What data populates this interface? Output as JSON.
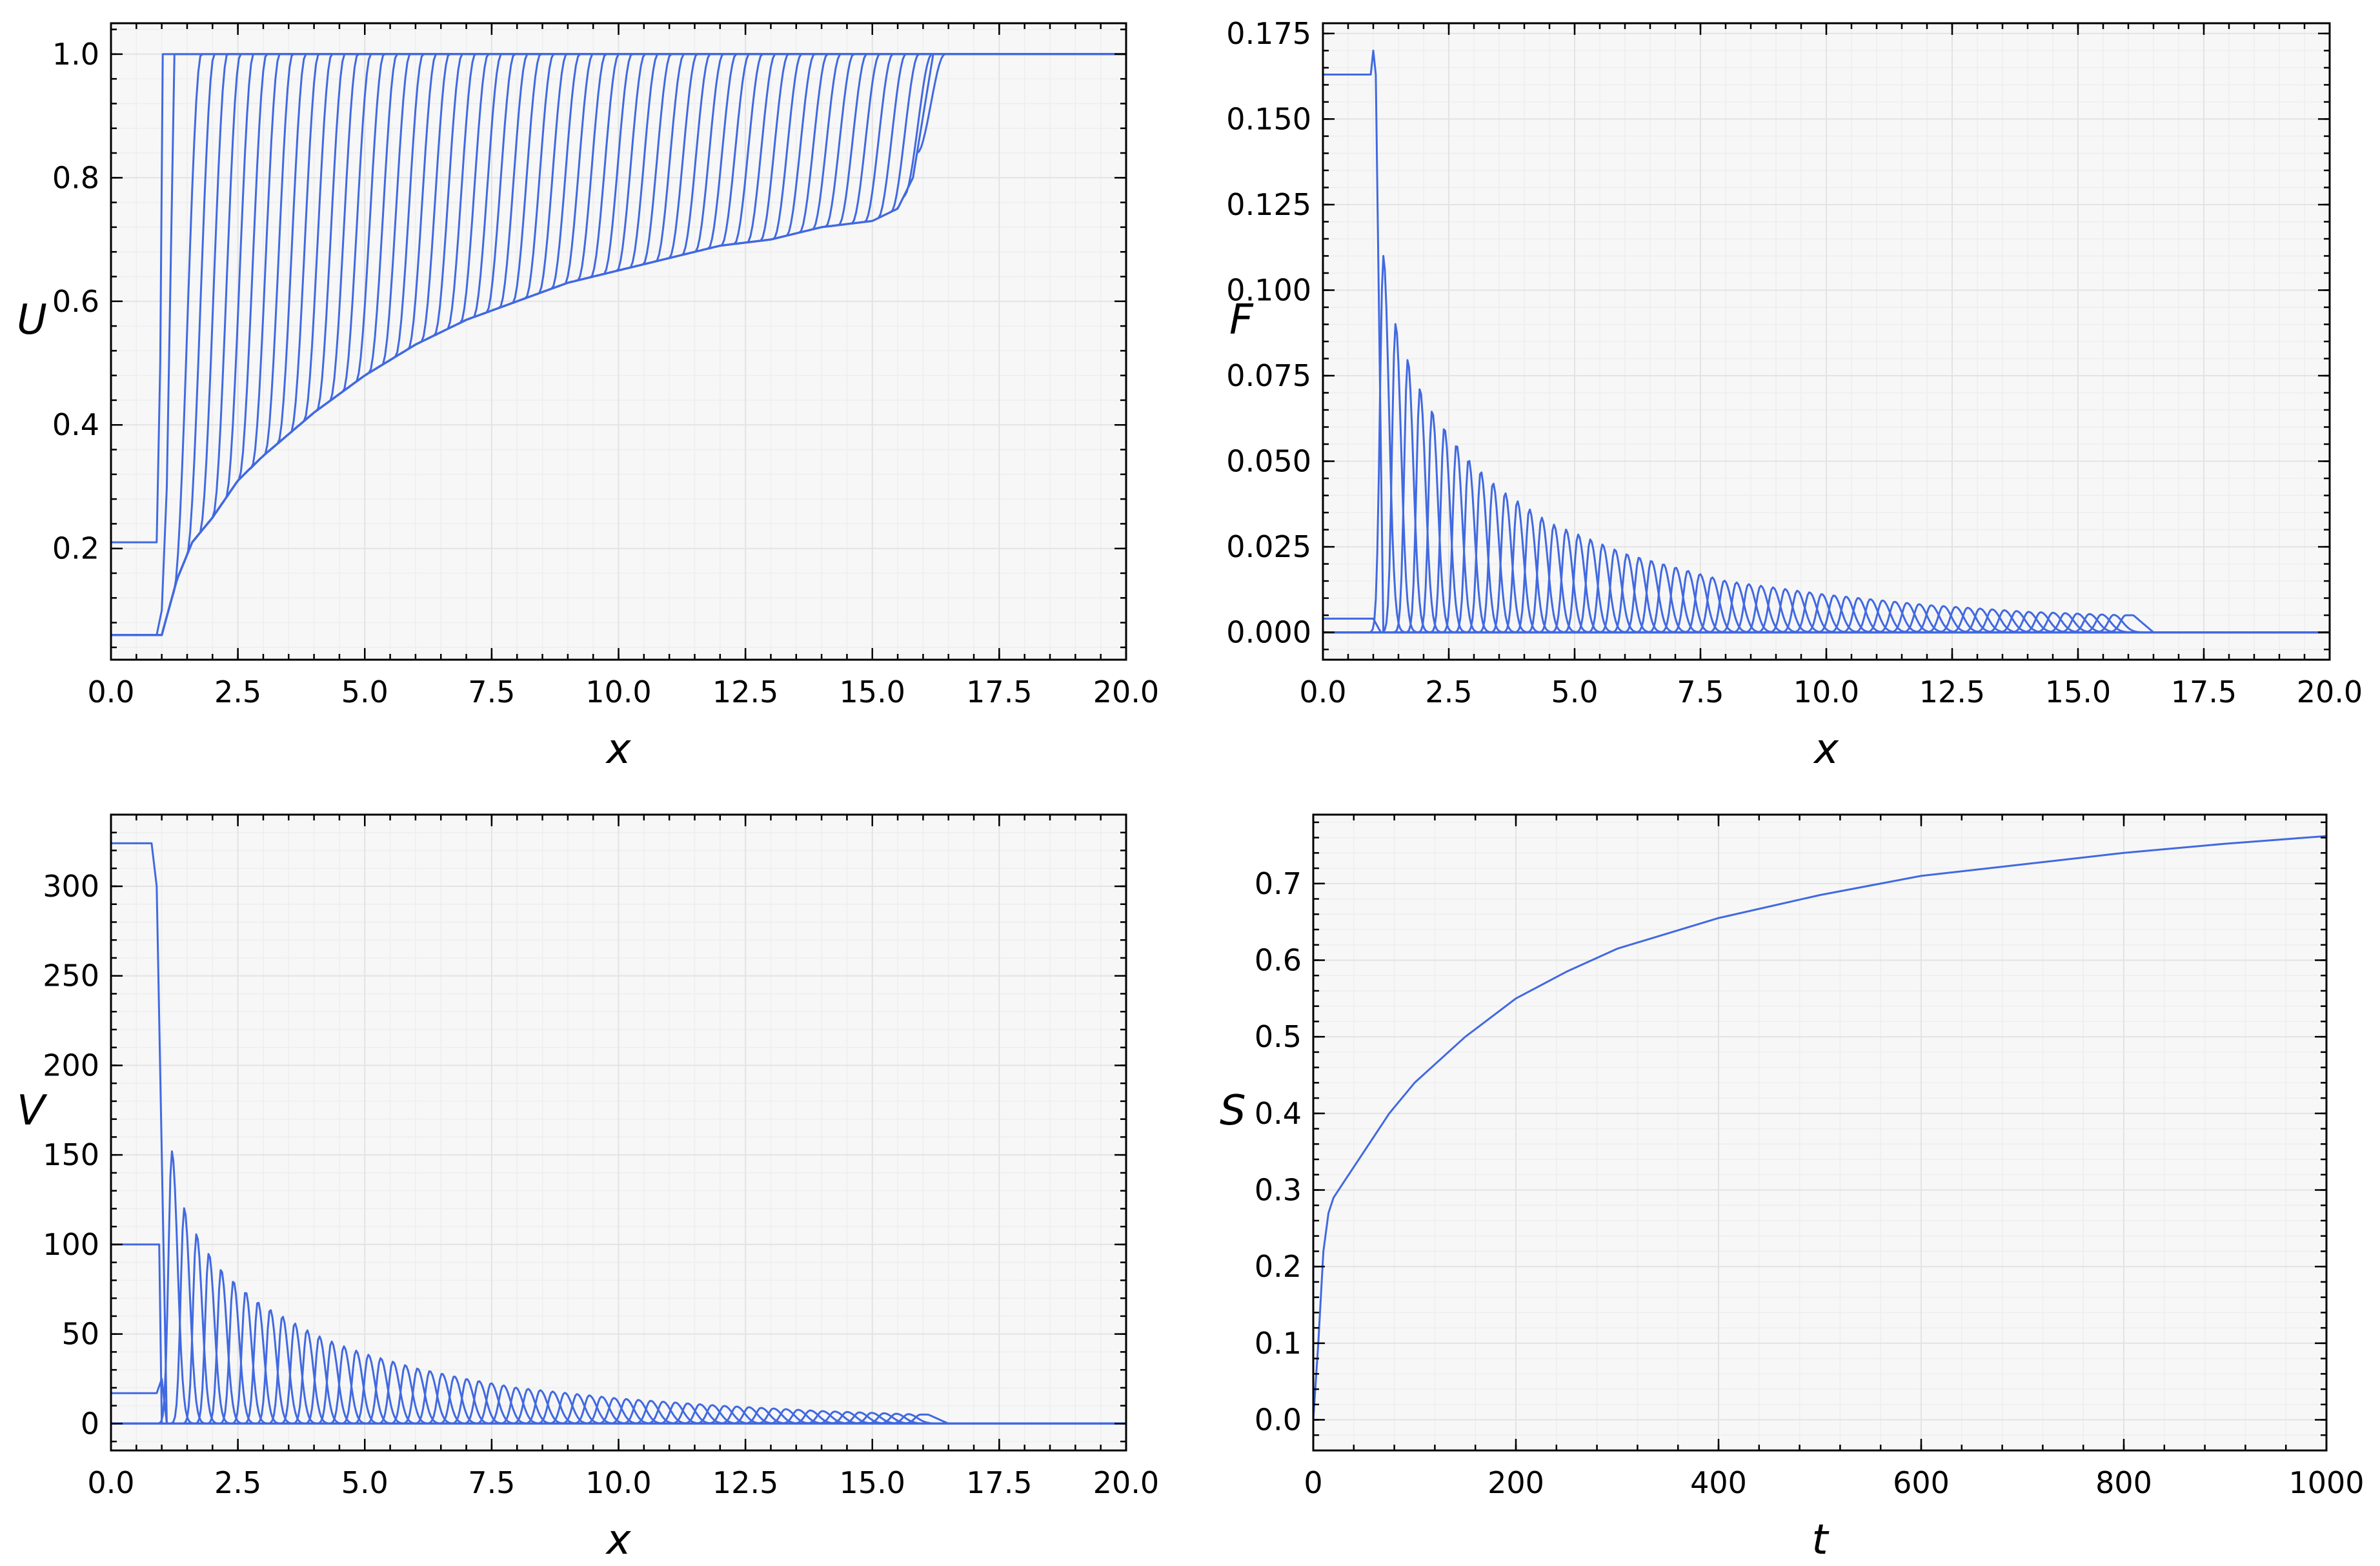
{
  "colors": {
    "line": "#4169e1",
    "plot_bg": "#f7f7f7",
    "grid_major": "#e3e3e3",
    "grid_minor": "#eeeeee",
    "frame": "#000000"
  },
  "chart_data": [
    {
      "id": "U",
      "type": "line",
      "subplot": "top-left",
      "xlabel": "x",
      "ylabel": "U",
      "xlim": [
        0,
        20
      ],
      "ylim": [
        0.02,
        1.05
      ],
      "xticks": [
        0,
        2.5,
        5,
        7.5,
        10,
        12.5,
        15,
        17.5,
        20
      ],
      "xtick_labels": [
        "0.0",
        "2.5",
        "5.0",
        "7.5",
        "10.0",
        "12.5",
        "15.0",
        "17.5",
        "20.0"
      ],
      "yticks": [
        0.2,
        0.4,
        0.6,
        0.8,
        1.0
      ],
      "ytick_labels": [
        "0.2",
        "0.4",
        "0.6",
        "0.8",
        "1.0"
      ],
      "grid": true,
      "description_of_series": "family of profiles: front position moves from x≈1.0 to x≈16.2; behind front U rises from 0.06 at x≈1 to 0.73 at x≈15",
      "series": [
        {
          "x": [
            0,
            0.9,
            0.97,
            1.02,
            20
          ],
          "y": [
            0.21,
            0.21,
            0.5,
            1.0,
            1.0
          ]
        },
        {
          "x": [
            0,
            0.9,
            1.0,
            1.1,
            1.25,
            20
          ],
          "y": [
            0.06,
            0.06,
            0.1,
            0.3,
            1.0,
            1.0
          ]
        },
        {
          "x": [
            0,
            1.0,
            1.3,
            1.6,
            2.0,
            2.5,
            3.0,
            4.0,
            5.0,
            6.0,
            7.0,
            8.0,
            9.0,
            10.0,
            11.0,
            12.0,
            13.0,
            14.0,
            15.0,
            15.5,
            15.8,
            16.0,
            16.2,
            20
          ],
          "y": [
            0.06,
            0.06,
            0.15,
            0.21,
            0.25,
            0.31,
            0.35,
            0.42,
            0.48,
            0.53,
            0.57,
            0.6,
            0.63,
            0.65,
            0.67,
            0.69,
            0.7,
            0.72,
            0.73,
            0.75,
            0.8,
            0.9,
            1.0,
            1.0
          ]
        }
      ]
    },
    {
      "id": "F",
      "type": "line",
      "subplot": "top-right",
      "xlabel": "x",
      "ylabel": "F",
      "xlim": [
        0,
        20
      ],
      "ylim": [
        -0.008,
        0.178
      ],
      "xticks": [
        0,
        2.5,
        5,
        7.5,
        10,
        12.5,
        15,
        17.5,
        20
      ],
      "xtick_labels": [
        "0.0",
        "2.5",
        "5.0",
        "7.5",
        "10.0",
        "12.5",
        "15.0",
        "17.5",
        "20.0"
      ],
      "yticks": [
        0.0,
        0.025,
        0.05,
        0.075,
        0.1,
        0.125,
        0.15,
        0.175
      ],
      "ytick_labels": [
        "0.000",
        "0.025",
        "0.050",
        "0.075",
        "0.100",
        "0.125",
        "0.150",
        "0.175"
      ],
      "grid": true,
      "series": [
        {
          "x": [
            0,
            0.95,
            1.0,
            1.05,
            1.2,
            20
          ],
          "y": [
            0.163,
            0.163,
            0.17,
            0.163,
            0.0,
            0.0
          ]
        },
        {
          "x": [
            0,
            1.0,
            1.15,
            1.3,
            20
          ],
          "y": [
            0.004,
            0.004,
            0.0,
            0.0,
            0.0
          ]
        },
        {
          "peaks_x": [
            1.2,
            1.4,
            1.6,
            1.8,
            2.0,
            2.2,
            2.4,
            2.6,
            2.8,
            3.0,
            3.5,
            4.0,
            4.5,
            5.0,
            6.0,
            7.0,
            8.0,
            9.0,
            10.0,
            12.0,
            14.0,
            15.9
          ],
          "peaks_y": [
            0.11,
            0.092,
            0.083,
            0.075,
            0.069,
            0.064,
            0.06,
            0.056,
            0.052,
            0.049,
            0.042,
            0.037,
            0.032,
            0.029,
            0.023,
            0.019,
            0.015,
            0.013,
            0.011,
            0.008,
            0.006,
            0.005
          ]
        }
      ]
    },
    {
      "id": "V",
      "type": "line",
      "subplot": "bottom-left",
      "xlabel": "x",
      "ylabel": "V",
      "xlim": [
        0,
        20
      ],
      "ylim": [
        -15,
        340
      ],
      "xticks": [
        0,
        2.5,
        5,
        7.5,
        10,
        12.5,
        15,
        17.5,
        20
      ],
      "xtick_labels": [
        "0.0",
        "2.5",
        "5.0",
        "7.5",
        "10.0",
        "12.5",
        "15.0",
        "17.5",
        "20.0"
      ],
      "yticks": [
        0,
        50,
        100,
        150,
        200,
        250,
        300
      ],
      "ytick_labels": [
        "0",
        "50",
        "100",
        "150",
        "200",
        "250",
        "300"
      ],
      "grid": true,
      "series": [
        {
          "x": [
            0,
            0.8,
            0.9,
            1.0,
            1.1,
            20
          ],
          "y": [
            324,
            324,
            300,
            150,
            0,
            0
          ]
        },
        {
          "x": [
            0,
            0.95,
            1.0,
            20
          ],
          "y": [
            100,
            100,
            0,
            0
          ]
        },
        {
          "x": [
            0,
            0.9,
            1.0,
            1.1,
            20
          ],
          "y": [
            17,
            17,
            25,
            0,
            0
          ]
        },
        {
          "peaks_x": [
            1.2,
            1.4,
            1.6,
            1.8,
            2.0,
            2.2,
            2.4,
            2.6,
            2.8,
            3.0,
            3.5,
            4.0,
            4.5,
            5.0,
            6.0,
            7.0,
            8.0,
            9.0,
            10.0,
            12.0,
            14.0,
            16.0
          ],
          "peaks_y": [
            152,
            123,
            110,
            100,
            92,
            85,
            80,
            75,
            70,
            66,
            58,
            50,
            44,
            39,
            31,
            25,
            20,
            17,
            14,
            10,
            7,
            5
          ]
        }
      ]
    },
    {
      "id": "S",
      "type": "line",
      "subplot": "bottom-right",
      "xlabel": "t",
      "ylabel": "S",
      "xlim": [
        0,
        1000
      ],
      "ylim": [
        -0.04,
        0.79
      ],
      "xticks": [
        0,
        200,
        400,
        600,
        800,
        1000
      ],
      "xtick_labels": [
        "0",
        "200",
        "400",
        "600",
        "800",
        "1000"
      ],
      "yticks": [
        0.0,
        0.1,
        0.2,
        0.3,
        0.4,
        0.5,
        0.6,
        0.7
      ],
      "ytick_labels": [
        "0.0",
        "0.1",
        "0.2",
        "0.3",
        "0.4",
        "0.5",
        "0.6",
        "0.7"
      ],
      "grid": true,
      "series": [
        {
          "x": [
            0,
            5,
            10,
            15,
            20,
            30,
            50,
            75,
            100,
            150,
            200,
            250,
            300,
            400,
            500,
            600,
            700,
            800,
            900,
            1000
          ],
          "y": [
            0.0,
            0.1,
            0.22,
            0.27,
            0.29,
            0.31,
            0.35,
            0.4,
            0.44,
            0.5,
            0.55,
            0.585,
            0.615,
            0.655,
            0.685,
            0.71,
            0.725,
            0.74,
            0.752,
            0.762
          ]
        }
      ]
    }
  ]
}
